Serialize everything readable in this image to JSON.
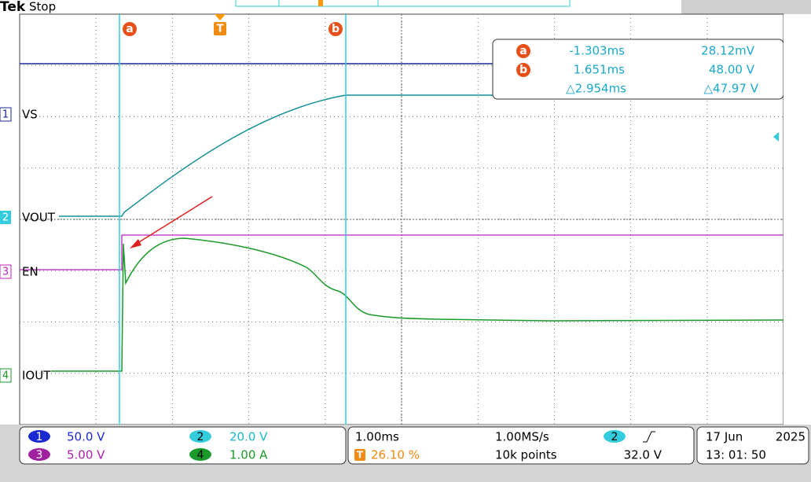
{
  "header": {
    "brand": "Tek",
    "status": "Stop"
  },
  "channels": [
    {
      "number": "1",
      "label": "VS"
    },
    {
      "number": "2",
      "label": "VOUT"
    },
    {
      "number": "3",
      "label": "EN"
    },
    {
      "number": "4",
      "label": "IOUT"
    }
  ],
  "cursor_markers": {
    "a": "a",
    "trigger": "T",
    "b": "b"
  },
  "readout": {
    "rows": [
      {
        "marker": "a",
        "time": "-1.303ms",
        "value": "28.12mV"
      },
      {
        "marker": "b",
        "time": "1.651ms",
        "value": "48.00 V"
      },
      {
        "time": "△2.954ms",
        "value": "△47.97 V"
      }
    ]
  },
  "status_bar": {
    "scales": [
      {
        "channel": "1",
        "value": "50.0 V"
      },
      {
        "channel": "2",
        "value": "20.0 V"
      },
      {
        "channel": "3",
        "value": "5.00 V"
      },
      {
        "channel": "4",
        "value": "1.00 A"
      }
    ],
    "timebase": "1.00ms",
    "trigger_position_marker": "T",
    "trigger_position": "26.10 %",
    "sample_rate": "1.00MS/s",
    "record_length": "10k points",
    "trigger_channel": "2",
    "trigger_level": "32.0 V",
    "date": "17 Jun",
    "year": "2025",
    "time": "13: 01: 50"
  }
}
